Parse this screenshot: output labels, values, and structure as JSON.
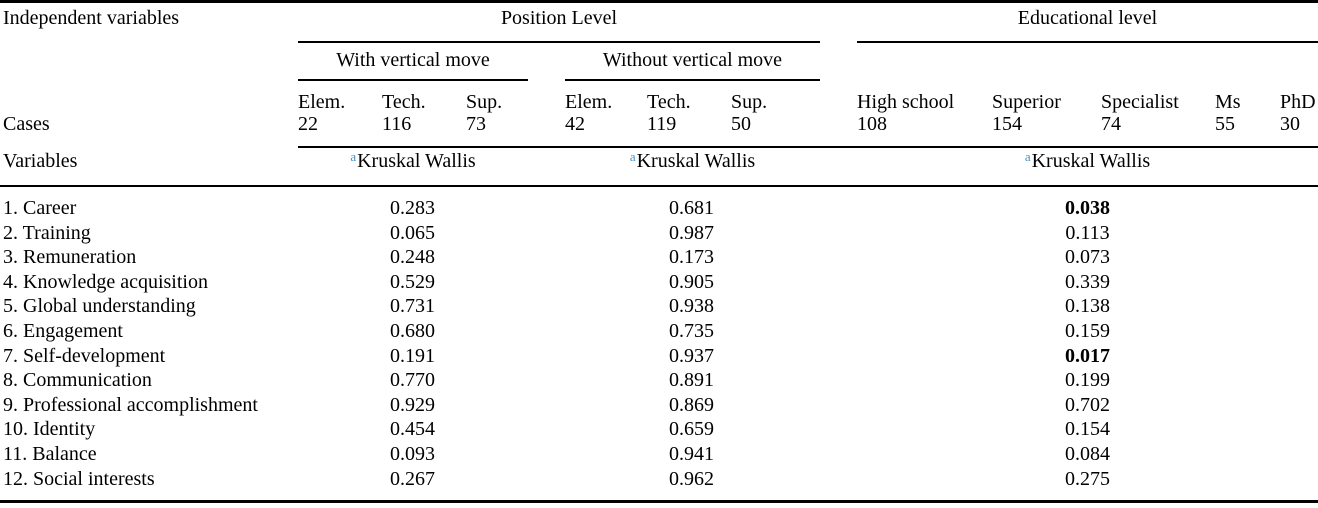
{
  "header": {
    "independent_variables": "Independent variables",
    "position_level": "Position Level",
    "educational_level": "Educational level",
    "with_vertical_move": "With vertical move",
    "without_vertical_move": "Without vertical move",
    "cases_label": "Cases",
    "variables_label": "Variables"
  },
  "test": {
    "superscript": "a",
    "label": "Kruskal Wallis"
  },
  "columns": [
    {
      "header": "Elem.",
      "cases": "22"
    },
    {
      "header": "Tech.",
      "cases": "116"
    },
    {
      "header": "Sup.",
      "cases": "73"
    },
    {
      "header": "Elem.",
      "cases": "42"
    },
    {
      "header": "Tech.",
      "cases": "119"
    },
    {
      "header": "Sup.",
      "cases": "50"
    },
    {
      "header": "High school",
      "cases": "108"
    },
    {
      "header": "Superior",
      "cases": "154"
    },
    {
      "header": "Specialist",
      "cases": "74"
    },
    {
      "header": "Ms",
      "cases": "55"
    },
    {
      "header": "PhD",
      "cases": "30"
    }
  ],
  "rows": [
    {
      "label": "1. Career",
      "with_move": "0.283",
      "without_move": "0.681",
      "education": "0.038",
      "education_bold": true
    },
    {
      "label": "2. Training",
      "with_move": "0.065",
      "without_move": "0.987",
      "education": "0.113",
      "education_bold": false
    },
    {
      "label": "3. Remuneration",
      "with_move": "0.248",
      "without_move": "0.173",
      "education": "0.073",
      "education_bold": false
    },
    {
      "label": "4. Knowledge acquisition",
      "with_move": "0.529",
      "without_move": "0.905",
      "education": "0.339",
      "education_bold": false
    },
    {
      "label": "5. Global understanding",
      "with_move": "0.731",
      "without_move": "0.938",
      "education": "0.138",
      "education_bold": false
    },
    {
      "label": "6. Engagement",
      "with_move": "0.680",
      "without_move": "0.735",
      "education": "0.159",
      "education_bold": false
    },
    {
      "label": "7. Self-development",
      "with_move": "0.191",
      "without_move": "0.937",
      "education": "0.017",
      "education_bold": true
    },
    {
      "label": "8. Communication",
      "with_move": "0.770",
      "without_move": "0.891",
      "education": "0.199",
      "education_bold": false
    },
    {
      "label": "9. Professional accomplishment",
      "with_move": "0.929",
      "without_move": "0.869",
      "education": "0.702",
      "education_bold": false
    },
    {
      "label": "10. Identity",
      "with_move": "0.454",
      "without_move": "0.659",
      "education": "0.154",
      "education_bold": false
    },
    {
      "label": "11. Balance",
      "with_move": "0.093",
      "without_move": "0.941",
      "education": "0.084",
      "education_bold": false
    },
    {
      "label": "12. Social interests",
      "with_move": "0.267",
      "without_move": "0.962",
      "education": "0.275",
      "education_bold": false
    }
  ],
  "colors": {
    "superscript_blue": "#4293c9",
    "text": "#000000",
    "rule": "#000000"
  }
}
